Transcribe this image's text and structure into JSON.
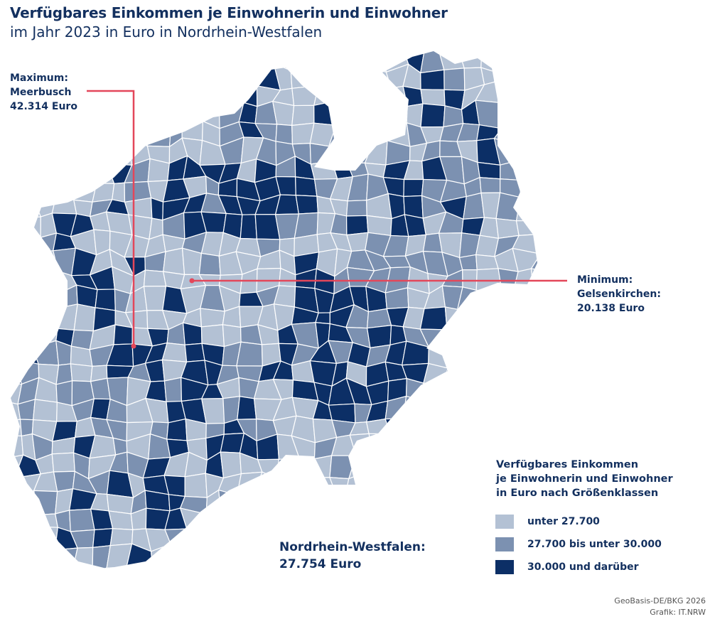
{
  "header": {
    "title": "Verfügbares Einkommen je Einwohnerin und Einwohner",
    "subtitle": "im Jahr 2023 in Euro in Nordrhein-Westfalen"
  },
  "annotations": {
    "maximum": {
      "label": "Maximum:",
      "place": "Meerbusch",
      "value": "42.314 Euro"
    },
    "minimum": {
      "label": "Minimum:",
      "place": "Gelsenkirchen:",
      "value": "20.138 Euro"
    },
    "total": {
      "label": "Nordrhein-Westfalen:",
      "value": "27.754 Euro"
    },
    "line_color": "#e3475a"
  },
  "legend": {
    "title_lines": [
      "Verfügbares Einkommen",
      "je Einwohnerin und Einwohner",
      "in Euro nach Größenklassen"
    ],
    "classes": [
      {
        "label": "unter 27.700",
        "color": "#b3c1d4"
      },
      {
        "label": "27.700 bis unter 30.000",
        "color": "#7c91b1"
      },
      {
        "label": "30.000 und darüber",
        "color": "#0c2f66"
      }
    ]
  },
  "footer": {
    "source": "GeoBasis-DE/BKG 2026",
    "credit": "Grafik: IT.NRW"
  }
}
